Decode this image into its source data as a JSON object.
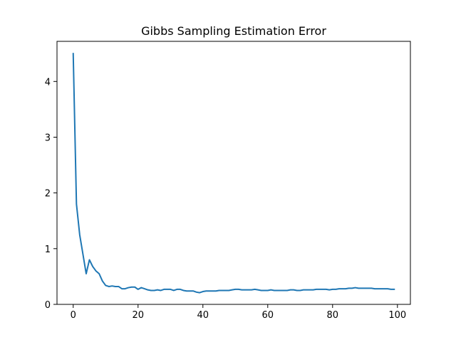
{
  "chart_data": {
    "type": "line",
    "title": "Gibbs Sampling Estimation Error",
    "xlabel": "",
    "ylabel": "",
    "xlim": [
      -5,
      104
    ],
    "ylim": [
      0,
      4.72
    ],
    "xticks": [
      0,
      20,
      40,
      60,
      80,
      100
    ],
    "yticks": [
      0,
      1,
      2,
      3,
      4
    ],
    "grid": false,
    "legend": "none",
    "series": [
      {
        "color": "#1f77b4",
        "x": [
          0,
          1,
          2,
          3,
          4,
          5,
          6,
          7,
          8,
          9,
          10,
          11,
          12,
          13,
          14,
          15,
          16,
          17,
          18,
          19,
          20,
          21,
          22,
          23,
          24,
          25,
          26,
          27,
          28,
          29,
          30,
          31,
          32,
          33,
          34,
          35,
          36,
          37,
          38,
          39,
          40,
          41,
          42,
          43,
          44,
          45,
          46,
          47,
          48,
          49,
          50,
          51,
          52,
          53,
          54,
          55,
          56,
          57,
          58,
          59,
          60,
          61,
          62,
          63,
          64,
          65,
          66,
          67,
          68,
          69,
          70,
          71,
          72,
          73,
          74,
          75,
          76,
          77,
          78,
          79,
          80,
          81,
          82,
          83,
          84,
          85,
          86,
          87,
          88,
          89,
          90,
          91,
          92,
          93,
          94,
          95,
          96,
          97,
          98,
          99
        ],
        "values": [
          4.5,
          1.8,
          1.25,
          0.9,
          0.55,
          0.8,
          0.68,
          0.6,
          0.55,
          0.42,
          0.34,
          0.32,
          0.33,
          0.32,
          0.32,
          0.28,
          0.28,
          0.3,
          0.31,
          0.31,
          0.27,
          0.3,
          0.28,
          0.26,
          0.25,
          0.25,
          0.26,
          0.25,
          0.27,
          0.27,
          0.27,
          0.25,
          0.27,
          0.27,
          0.25,
          0.24,
          0.24,
          0.24,
          0.22,
          0.21,
          0.23,
          0.24,
          0.24,
          0.24,
          0.24,
          0.25,
          0.25,
          0.25,
          0.25,
          0.26,
          0.27,
          0.27,
          0.26,
          0.26,
          0.26,
          0.26,
          0.27,
          0.26,
          0.25,
          0.25,
          0.25,
          0.26,
          0.25,
          0.25,
          0.25,
          0.25,
          0.25,
          0.26,
          0.26,
          0.25,
          0.25,
          0.26,
          0.26,
          0.26,
          0.26,
          0.27,
          0.27,
          0.27,
          0.27,
          0.26,
          0.27,
          0.27,
          0.28,
          0.28,
          0.28,
          0.29,
          0.29,
          0.3,
          0.29,
          0.29,
          0.29,
          0.29,
          0.29,
          0.28,
          0.28,
          0.28,
          0.28,
          0.28,
          0.27,
          0.27
        ]
      }
    ]
  }
}
